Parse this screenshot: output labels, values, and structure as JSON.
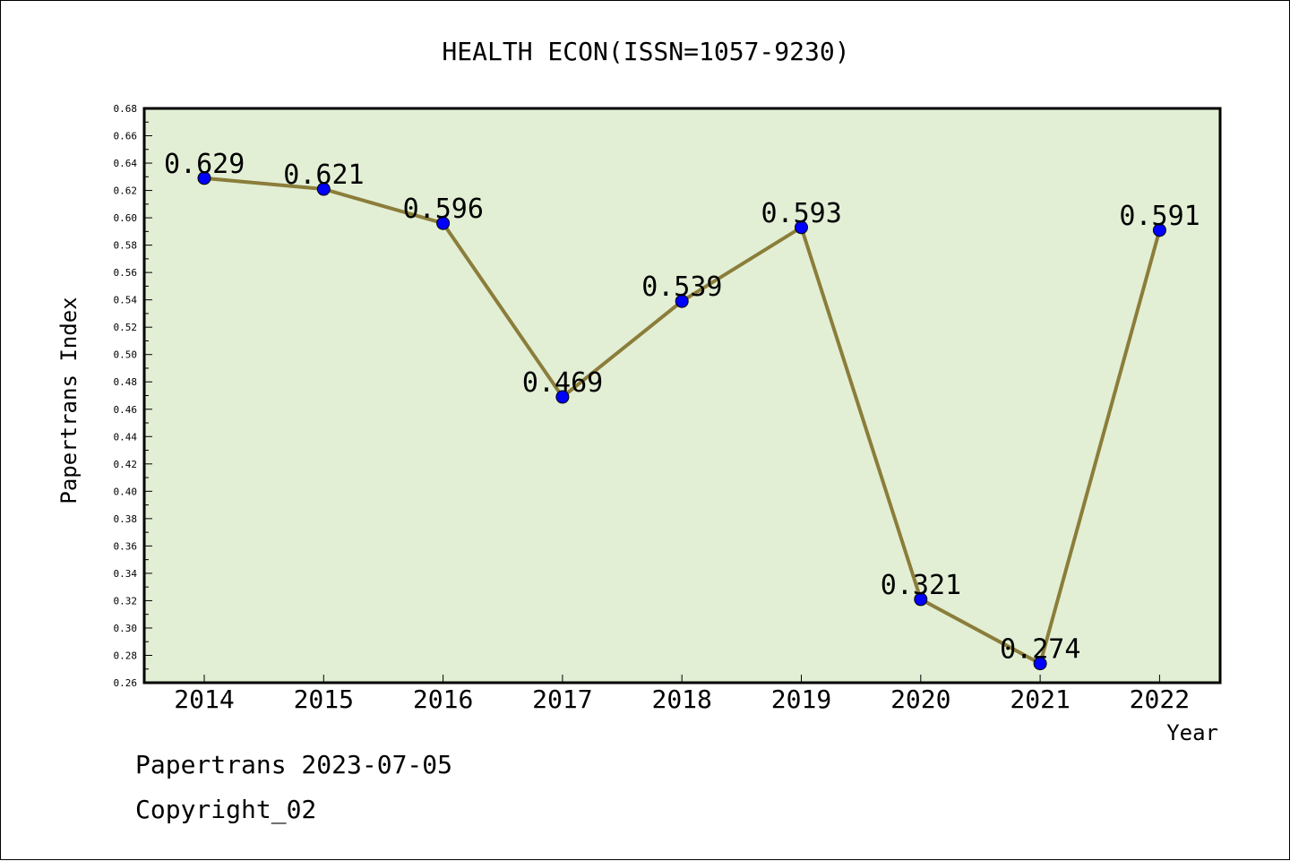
{
  "chart_data": {
    "type": "line",
    "title": "HEALTH ECON(ISSN=1057-9230)",
    "xlabel": "Year",
    "ylabel": "Papertrans Index",
    "categories": [
      "2014",
      "2015",
      "2016",
      "2017",
      "2018",
      "2019",
      "2020",
      "2021",
      "2022"
    ],
    "series": [
      {
        "values": [
          0.629,
          0.621,
          0.596,
          0.469,
          0.539,
          0.593,
          0.321,
          0.274,
          0.591
        ],
        "labels": [
          "0.629",
          "0.621",
          "0.596",
          "0.469",
          "0.539",
          "0.593",
          "0.321",
          "0.274",
          "0.591"
        ]
      }
    ],
    "ylim": [
      0.26,
      0.68
    ],
    "ytick_labels": [
      "0.26",
      "0.28",
      "0.30",
      "0.32",
      "0.34",
      "0.36",
      "0.38",
      "0.40",
      "0.42",
      "0.44",
      "0.46",
      "0.48",
      "0.50",
      "0.52",
      "0.54",
      "0.56",
      "0.58",
      "0.60",
      "0.62",
      "0.64",
      "0.66",
      "0.68"
    ],
    "grid": false,
    "colors": {
      "plot_background": "#e2efd5",
      "line": "#8b7d3a",
      "marker": "#0000ff"
    }
  },
  "footer": {
    "line1": "Papertrans 2023-07-05",
    "line2": "Copyright_02"
  }
}
